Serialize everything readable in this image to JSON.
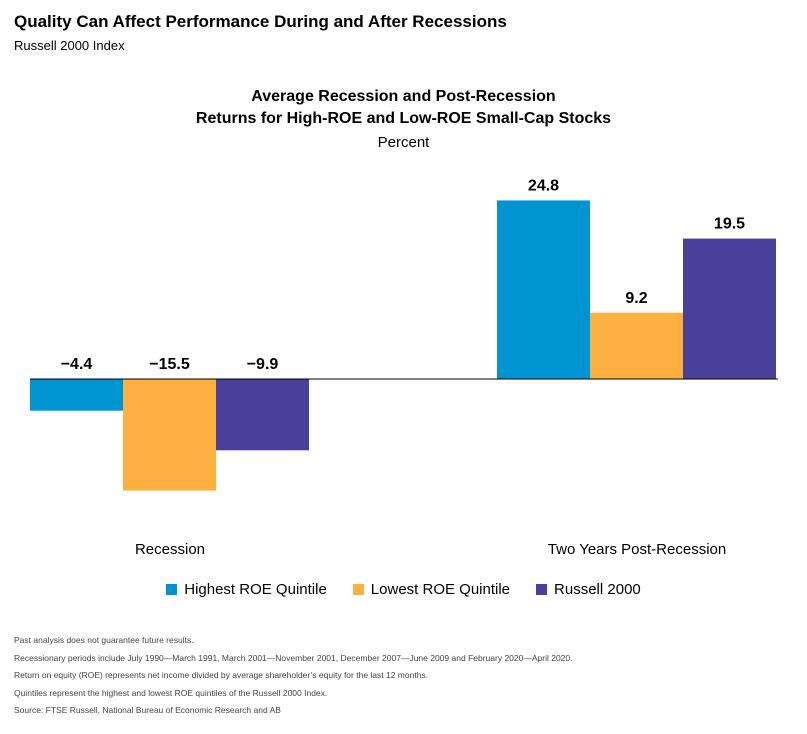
{
  "header": {
    "title": "Quality Can Affect Performance During and After Recessions",
    "subtitle": "Russell 2000 Index"
  },
  "chart_data": {
    "type": "bar",
    "title_lines": [
      "Average Recession and Post-Recession",
      "Returns for High-ROE and Low-ROE Small-Cap Stocks"
    ],
    "unit": "Percent",
    "categories": [
      "Recession",
      "Two Years Post-Recession"
    ],
    "series": [
      {
        "name": "Highest ROE Quintile",
        "color": "#0094D3",
        "values": [
          -4.4,
          24.8
        ],
        "labels": [
          "−4.4",
          "24.8"
        ]
      },
      {
        "name": "Lowest ROE Quintile",
        "color": "#FDB03F",
        "values": [
          -15.5,
          9.2
        ],
        "labels": [
          "−15.5",
          "9.2"
        ]
      },
      {
        "name": "Russell 2000",
        "color": "#4A3F9A",
        "values": [
          -9.9,
          19.5
        ],
        "labels": [
          "−9.9",
          "19.5"
        ]
      }
    ],
    "grid": false,
    "legend_position": "bottom"
  },
  "footnotes": [
    "Past analysis does not guarantee future results.",
    "Recessionary periods include July 1990—March 1991, March 2001—November 2001, December 2007—June 2009 and February 2020—April 2020.",
    "Return on equity (ROE) represents net income divided by average shareholder’s equity for the last 12 months.",
    "Quintiles represent the highest and lowest ROE quintiles of the Russell 2000 Index.",
    "Source: FTSE Russell, National Bureau of Economic Research and AB"
  ]
}
